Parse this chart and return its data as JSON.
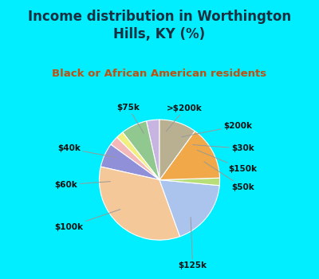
{
  "title": "Income distribution in Worthington\nHills, KY (%)",
  "subtitle": "Black or African American residents",
  "labels": [
    ">$200k",
    "$200k",
    "$30k",
    "$150k",
    "$50k",
    "$125k",
    "$100k",
    "$60k",
    "$40k",
    "$75k"
  ],
  "sizes": [
    3.5,
    7.0,
    2.0,
    2.5,
    6.5,
    34.0,
    18.0,
    2.0,
    14.5,
    10.0
  ],
  "colors": [
    "#c8b4e0",
    "#90c890",
    "#f0ef80",
    "#f5b8b8",
    "#9090d8",
    "#f5c89a",
    "#aac4ee",
    "#b8de78",
    "#f0a848",
    "#b8b090"
  ],
  "bg_color": "#00eeff",
  "chart_bg_top": "#e0f5f0",
  "chart_bg_bot": "#d0eecc",
  "startangle": 90,
  "label_fontsize": 7.5,
  "title_fontsize": 12,
  "subtitle_fontsize": 9.5,
  "title_color": "#1a3040",
  "subtitle_color": "#c05010",
  "label_color": "#111111"
}
